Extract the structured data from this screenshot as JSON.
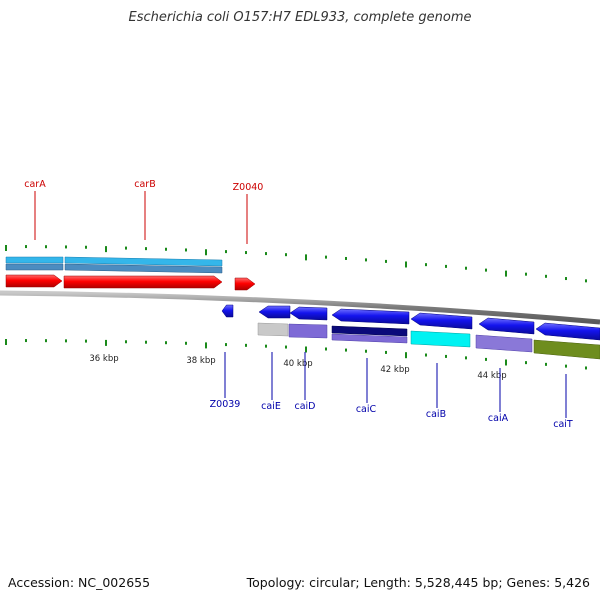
{
  "title": "Escherichia coli O157:H7 EDL933, complete genome",
  "footer": {
    "accession": "Accession: NC_002655",
    "stats": "Topology: circular; Length: 5,528,445 bp; Genes: 5,426"
  },
  "scale_labels": [
    "36 kbp",
    "38 kbp",
    "40 kbp",
    "42 kbp",
    "44 kbp"
  ],
  "colors": {
    "forward_gene": "#ff0000",
    "reverse_gene": "#1010f0",
    "forward_label": "#cc0000",
    "reverse_label": "#0000aa",
    "tick": "#1a8a1a",
    "backbone": "#8a8a8a"
  },
  "genes": {
    "forward": [
      {
        "name": "carA"
      },
      {
        "name": "carB"
      },
      {
        "name": "Z0040"
      }
    ],
    "reverse": [
      {
        "name": "Z0039"
      },
      {
        "name": "caiE"
      },
      {
        "name": "caiD"
      },
      {
        "name": "caiC"
      },
      {
        "name": "caiB"
      },
      {
        "name": "caiA"
      },
      {
        "name": "caiT"
      }
    ]
  }
}
